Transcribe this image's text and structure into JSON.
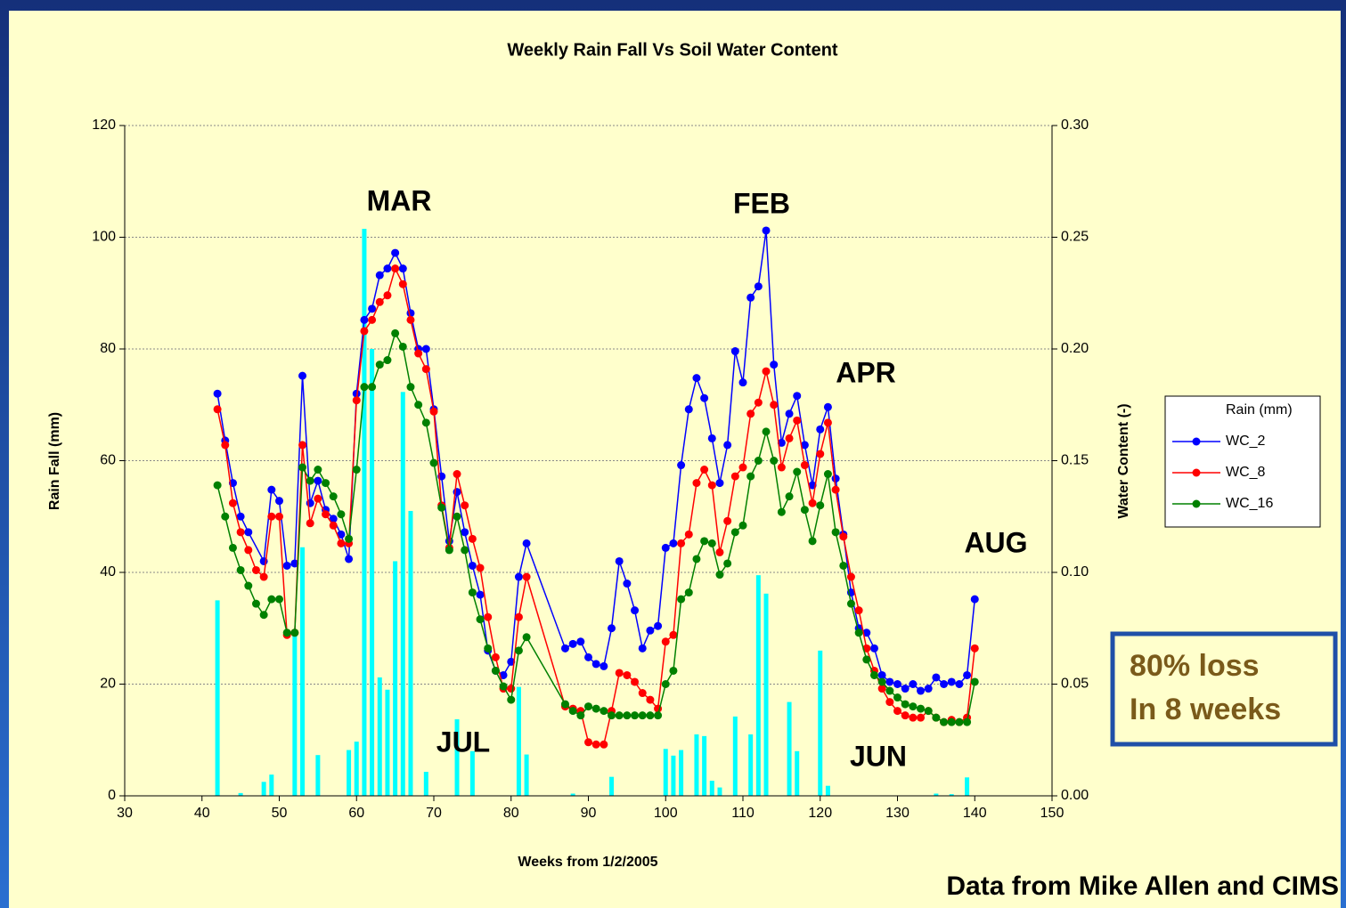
{
  "chart_data": {
    "type": "bar-line",
    "title": "Weekly Rain Fall Vs Soil Water Content",
    "x_label": "Weeks from 1/2/2005",
    "y_label": "Rain Fall (mm)",
    "y2_label": "Water Content (-)",
    "xlim": [
      30,
      150
    ],
    "xticks": [
      30,
      40,
      50,
      60,
      70,
      80,
      90,
      100,
      110,
      120,
      130,
      140,
      150
    ],
    "ylim": [
      0,
      120
    ],
    "yticks": [
      0,
      20,
      40,
      60,
      80,
      100,
      120
    ],
    "y2lim": [
      0,
      0.3
    ],
    "y2ticks": [
      {
        "value": 0,
        "label": "0.00"
      },
      {
        "value": 0.05,
        "label": "0.05"
      },
      {
        "value": 0.1,
        "label": "0.10"
      },
      {
        "value": 0.15,
        "label": "0.15"
      },
      {
        "value": 0.2,
        "label": "0.20"
      },
      {
        "value": 0.25,
        "label": "0.25"
      },
      {
        "value": 0.3,
        "label": "0.30"
      }
    ],
    "grid": true,
    "legend": "right",
    "series": [
      {
        "name": "Rain (mm)",
        "kind": "bar",
        "color": "#00ffff",
        "x": [
          42,
          45,
          48,
          49,
          52,
          53,
          55,
          59,
          60,
          61,
          62,
          63,
          64,
          65,
          66,
          67,
          69,
          73,
          75,
          81,
          82,
          88,
          93,
          100,
          101,
          102,
          104,
          105,
          106,
          107,
          109,
          111,
          112,
          113,
          116,
          117,
          120,
          121,
          135,
          137,
          139
        ],
        "values": [
          35,
          0.5,
          2.5,
          3.8,
          29,
          44.5,
          7.3,
          8.2,
          9.7,
          101.5,
          80,
          21.2,
          19,
          42,
          72.3,
          51,
          4.3,
          13.7,
          8,
          19.5,
          7.4,
          0.4,
          3.4,
          8.4,
          7.2,
          8.2,
          11,
          10.7,
          2.7,
          1.5,
          14.2,
          11,
          39.5,
          36.2,
          16.8,
          8,
          26,
          1.8,
          0.4,
          0.3,
          3.3
        ]
      },
      {
        "name": "WC_2",
        "kind": "line",
        "axis": "y2",
        "color": "#0000ff",
        "x": [
          42,
          43,
          44,
          45,
          46,
          48,
          49,
          50,
          51,
          52,
          53,
          54,
          55,
          56,
          57,
          58,
          59,
          60,
          61,
          62,
          63,
          64,
          65,
          66,
          67,
          68,
          69,
          70,
          71,
          72,
          73,
          74,
          75,
          76,
          77,
          78,
          79,
          80,
          81,
          82,
          87,
          88,
          89,
          90,
          91,
          92,
          93,
          94,
          95,
          96,
          97,
          98,
          99,
          100,
          101,
          102,
          103,
          104,
          105,
          106,
          107,
          108,
          109,
          110,
          111,
          112,
          113,
          114,
          115,
          116,
          117,
          118,
          119,
          120,
          121,
          122,
          123,
          124,
          125,
          126,
          127,
          128,
          129,
          130,
          131,
          132,
          133,
          134,
          135,
          136,
          137,
          138,
          139,
          140
        ],
        "values": [
          0.18,
          0.159,
          0.14,
          0.125,
          0.118,
          0.105,
          0.137,
          0.132,
          0.103,
          0.104,
          0.188,
          0.131,
          0.141,
          0.128,
          0.124,
          0.117,
          0.106,
          0.18,
          0.213,
          0.218,
          0.233,
          0.236,
          0.243,
          0.236,
          0.216,
          0.2,
          0.2,
          0.173,
          0.143,
          0.114,
          0.136,
          0.118,
          0.103,
          0.09,
          0.065,
          0.056,
          0.054,
          0.06,
          0.098,
          0.113,
          0.066,
          0.068,
          0.069,
          0.062,
          0.059,
          0.058,
          0.075,
          0.105,
          0.095,
          0.083,
          0.066,
          0.074,
          0.076,
          0.111,
          0.113,
          0.148,
          0.173,
          0.187,
          0.178,
          0.16,
          0.14,
          0.157,
          0.199,
          0.185,
          0.223,
          0.228,
          0.253,
          0.193,
          0.158,
          0.171,
          0.179,
          0.157,
          0.139,
          0.164,
          0.174,
          0.142,
          0.117,
          0.091,
          0.075,
          0.073,
          0.066,
          0.054,
          0.051,
          0.05,
          0.048,
          0.05,
          0.047,
          0.048,
          0.053,
          0.05,
          0.051,
          0.05,
          0.054,
          0.088
        ]
      },
      {
        "name": "WC_8",
        "kind": "line",
        "axis": "y2",
        "color": "#ff0000",
        "x": [
          42,
          43,
          44,
          45,
          46,
          47,
          48,
          49,
          50,
          51,
          52,
          53,
          54,
          55,
          56,
          57,
          58,
          59,
          60,
          61,
          62,
          63,
          64,
          65,
          66,
          67,
          68,
          69,
          70,
          71,
          72,
          73,
          74,
          75,
          76,
          77,
          78,
          79,
          80,
          81,
          82,
          87,
          88,
          89,
          90,
          91,
          92,
          93,
          94,
          95,
          96,
          97,
          98,
          99,
          100,
          101,
          102,
          103,
          104,
          105,
          106,
          107,
          108,
          109,
          110,
          111,
          112,
          113,
          114,
          115,
          116,
          117,
          118,
          119,
          120,
          121,
          122,
          123,
          124,
          125,
          126,
          127,
          128,
          129,
          130,
          131,
          132,
          133,
          134,
          135,
          136,
          137,
          138,
          139,
          140
        ],
        "values": [
          0.173,
          0.157,
          0.131,
          0.118,
          0.11,
          0.101,
          0.098,
          0.125,
          0.125,
          0.072,
          0.073,
          0.157,
          0.122,
          0.133,
          0.126,
          0.121,
          0.113,
          0.113,
          0.177,
          0.208,
          0.213,
          0.221,
          0.224,
          0.236,
          0.229,
          0.213,
          0.198,
          0.191,
          0.172,
          0.13,
          0.111,
          0.144,
          0.13,
          0.115,
          0.102,
          0.08,
          0.062,
          0.048,
          0.048,
          0.08,
          0.098,
          0.04,
          0.039,
          0.038,
          0.024,
          0.023,
          0.023,
          0.038,
          0.055,
          0.054,
          0.051,
          0.046,
          0.043,
          0.039,
          0.069,
          0.072,
          0.113,
          0.117,
          0.14,
          0.146,
          0.139,
          0.109,
          0.123,
          0.143,
          0.147,
          0.171,
          0.176,
          0.19,
          0.175,
          0.147,
          0.16,
          0.168,
          0.148,
          0.131,
          0.153,
          0.167,
          0.137,
          0.116,
          0.098,
          0.083,
          0.066,
          0.056,
          0.048,
          0.042,
          0.038,
          0.036,
          0.035,
          0.035,
          0.038,
          0.035,
          0.033,
          0.034,
          0.033,
          0.035,
          0.066
        ]
      },
      {
        "name": "WC_16",
        "kind": "line",
        "axis": "y2",
        "color": "#008000",
        "x": [
          42,
          43,
          44,
          45,
          46,
          47,
          48,
          49,
          50,
          51,
          52,
          53,
          54,
          55,
          56,
          57,
          58,
          59,
          60,
          61,
          62,
          63,
          64,
          65,
          66,
          67,
          68,
          69,
          70,
          71,
          72,
          73,
          74,
          75,
          76,
          77,
          78,
          79,
          80,
          81,
          82,
          87,
          88,
          89,
          90,
          91,
          92,
          93,
          94,
          95,
          96,
          97,
          98,
          99,
          100,
          101,
          102,
          103,
          104,
          105,
          106,
          107,
          108,
          109,
          110,
          111,
          112,
          113,
          114,
          115,
          116,
          117,
          118,
          119,
          120,
          121,
          122,
          123,
          124,
          125,
          126,
          127,
          128,
          129,
          130,
          131,
          132,
          133,
          134,
          135,
          136,
          137,
          138,
          139,
          140
        ],
        "values": [
          0.139,
          0.125,
          0.111,
          0.101,
          0.094,
          0.086,
          0.081,
          0.088,
          0.088,
          0.073,
          0.073,
          0.147,
          0.141,
          0.146,
          0.14,
          0.134,
          0.126,
          0.115,
          0.146,
          0.183,
          0.183,
          0.193,
          0.195,
          0.207,
          0.201,
          0.183,
          0.175,
          0.167,
          0.149,
          0.129,
          0.11,
          0.125,
          0.11,
          0.091,
          0.079,
          0.066,
          0.056,
          0.049,
          0.043,
          0.065,
          0.071,
          0.041,
          0.038,
          0.036,
          0.04,
          0.039,
          0.038,
          0.036,
          0.036,
          0.036,
          0.036,
          0.036,
          0.036,
          0.036,
          0.05,
          0.056,
          0.088,
          0.091,
          0.106,
          0.114,
          0.113,
          0.099,
          0.104,
          0.118,
          0.121,
          0.143,
          0.15,
          0.163,
          0.15,
          0.127,
          0.134,
          0.145,
          0.128,
          0.114,
          0.13,
          0.144,
          0.118,
          0.103,
          0.086,
          0.073,
          0.061,
          0.054,
          0.051,
          0.047,
          0.044,
          0.041,
          0.04,
          0.039,
          0.038,
          0.035,
          0.033,
          0.033,
          0.033,
          0.033,
          0.051
        ]
      }
    ],
    "annotations": [
      "MAR",
      "FEB",
      "APR",
      "AUG",
      "JUL",
      "JUN"
    ],
    "callout": [
      "80% loss",
      "In 8 weeks"
    ],
    "source": "Data from Mike Allen and CIMS"
  }
}
